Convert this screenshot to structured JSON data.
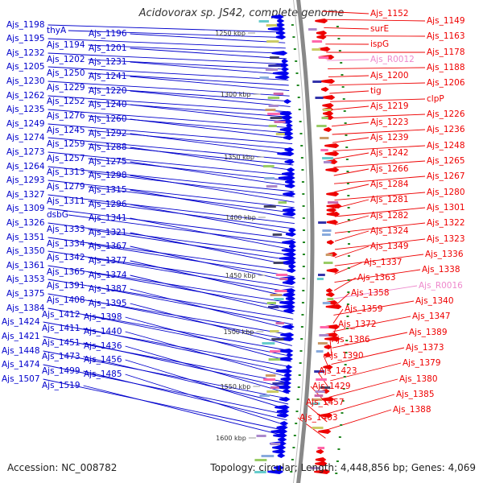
{
  "title": "Acidovorax sp. JS42, complete genome",
  "footer": {
    "accession": "Accession: NC_008782",
    "topology": "Topology: circular; Length: 4,448,856 bp; Genes: 4,069"
  },
  "colors": {
    "reverse_label": "#0000cc",
    "forward_label": "#ee0000",
    "rna_label": "#ee88cc",
    "backbone": "#888888"
  },
  "axis_ticks": [
    {
      "label": "1250 kbp",
      "idx": 0
    },
    {
      "label": "1300 kbp",
      "idx": 1
    },
    {
      "label": "1350 kbp",
      "idx": 2
    },
    {
      "label": "1400 kbp",
      "idx": 3
    },
    {
      "label": "1450 kbp",
      "idx": 4
    },
    {
      "label": "1500 kbp",
      "idx": 5
    },
    {
      "label": "1550 kbp",
      "idx": 6
    },
    {
      "label": "1600 kbp",
      "idx": 7
    }
  ],
  "left_labels": [
    "Ajs_1198",
    "thyA",
    "Ajs_1196",
    "Ajs_1195",
    "Ajs_1194",
    "Ajs_1201",
    "Ajs_1232",
    "Ajs_1202",
    "Ajs_1231",
    "Ajs_1205",
    "Ajs_1250",
    "Ajs_1241",
    "Ajs_1230",
    "Ajs_1229",
    "Ajs_1220",
    "Ajs_1262",
    "Ajs_1252",
    "Ajs_1240",
    "Ajs_1235",
    "Ajs_1276",
    "Ajs_1260",
    "Ajs_1249",
    "Ajs_1245",
    "Ajs_1292",
    "Ajs_1274",
    "Ajs_1259",
    "Ajs_1288",
    "Ajs_1273",
    "Ajs_1257",
    "Ajs_1275",
    "Ajs_1264",
    "Ajs_1313",
    "Ajs_1298",
    "Ajs_1293",
    "Ajs_1279",
    "Ajs_1315",
    "Ajs_1327",
    "Ajs_1311",
    "Ajs_1296",
    "Ajs_1309",
    "dsbG",
    "Ajs_1341",
    "Ajs_1326",
    "Ajs_1333",
    "Ajs_1321",
    "Ajs_1351",
    "Ajs_1334",
    "Ajs_1367",
    "Ajs_1350",
    "Ajs_1342",
    "Ajs_1377",
    "Ajs_1361",
    "Ajs_1365",
    "Ajs_1374",
    "Ajs_1353",
    "Ajs_1391",
    "Ajs_1387",
    "Ajs_1375",
    "Ajs_1408",
    "Ajs_1395",
    "Ajs_1384",
    "Ajs_1412",
    "Ajs_1398",
    "Ajs_1424",
    "Ajs_1411",
    "Ajs_1440",
    "Ajs_1421",
    "Ajs_1451",
    "Ajs_1436",
    "Ajs_1448",
    "Ajs_1473",
    "Ajs_1456",
    "Ajs_1474",
    "Ajs_1499",
    "Ajs_1485",
    "Ajs_1507",
    "Ajs_1519"
  ],
  "right_labels": [
    "Ajs_1152",
    "Ajs_1149",
    "surE",
    "Ajs_1163",
    "ispG",
    "Ajs_1178",
    "Ajs_R0012",
    "Ajs_1188",
    "Ajs_1200",
    "Ajs_1206",
    "tig",
    "clpP",
    "Ajs_1219",
    "Ajs_1226",
    "Ajs_1223",
    "Ajs_1236",
    "Ajs_1239",
    "Ajs_1248",
    "Ajs_1242",
    "Ajs_1265",
    "Ajs_1266",
    "Ajs_1267",
    "Ajs_1284",
    "Ajs_1280",
    "Ajs_1281",
    "Ajs_1301",
    "Ajs_1282",
    "Ajs_1322",
    "Ajs_1324",
    "Ajs_1323",
    "Ajs_1349",
    "Ajs_1336",
    "Ajs_1337",
    "Ajs_1338",
    "Ajs_1363",
    "Ajs_R0016",
    "Ajs_1358",
    "Ajs_1340",
    "Ajs_1359",
    "Ajs_1347",
    "Ajs_1372",
    "Ajs_1389",
    "Ajs_1386",
    "Ajs_1373",
    "Ajs_1390",
    "Ajs_1379",
    "Ajs_1423",
    "Ajs_1380",
    "Ajs_1429",
    "Ajs_1385",
    "Ajs_1457",
    "Ajs_1388",
    "Ajs_1463"
  ]
}
